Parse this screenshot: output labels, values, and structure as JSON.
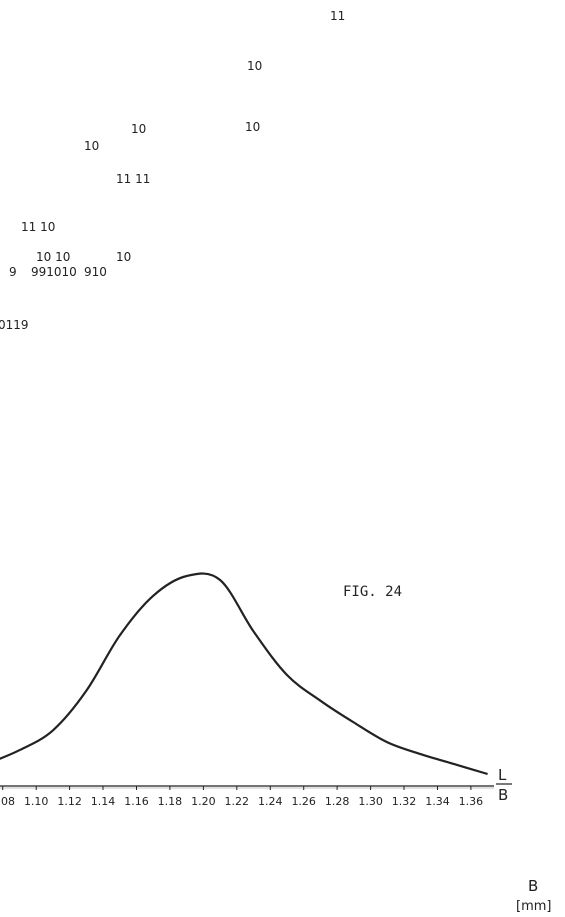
{
  "figure": {
    "title": "FIG. 24",
    "axis_ratio_label_top": "L",
    "axis_ratio_label_bottom": "B",
    "bottom_axis_name": "B",
    "bottom_axis_unit": "[mm]"
  },
  "chart_data": [
    {
      "type": "scatter",
      "description_free": true,
      "points": [
        {
          "label": "11",
          "x": 1.23,
          "y": 11
        },
        {
          "label": "10",
          "x": 1.2,
          "y": 10
        },
        {
          "label": "10",
          "x": 1.12,
          "y": 10
        },
        {
          "label": "10",
          "x": 1.2,
          "y": 10
        },
        {
          "label": "10",
          "x": 1.08,
          "y": 10
        },
        {
          "label": "11 11",
          "x": 1.1,
          "y": 11
        },
        {
          "label": "11 10",
          "x": 1.02,
          "y": 10
        },
        {
          "label": "10 10",
          "x": 1.04,
          "y": 10
        },
        {
          "label": "10",
          "x": 1.1,
          "y": 10
        },
        {
          "label": "9",
          "x": 1.0,
          "y": 9
        },
        {
          "label": "991010",
          "x": 1.04,
          "y": 10
        },
        {
          "label": "910",
          "x": 1.08,
          "y": 10
        },
        {
          "label": "0119",
          "x": 0.99,
          "y": 9
        }
      ]
    },
    {
      "type": "line",
      "title": "FIG. 24",
      "xlabel": "B",
      "xunit": "[mm]",
      "ylabel": "",
      "x": [
        1.07,
        1.09,
        1.11,
        1.13,
        1.15,
        1.17,
        1.19,
        1.21,
        1.23,
        1.25,
        1.27,
        1.29,
        1.31,
        1.33,
        1.35,
        1.37
      ],
      "y": [
        0.05,
        0.12,
        0.22,
        0.42,
        0.7,
        0.9,
        1.0,
        0.98,
        0.72,
        0.5,
        0.37,
        0.26,
        0.16,
        0.1,
        0.05,
        0.0
      ],
      "tick_labels": [
        "1.08",
        "1.10",
        "1.12",
        "1.14",
        "1.16",
        "1.18",
        "1.20",
        "1.22",
        "1.24",
        "1.26",
        "1.28",
        "1.30",
        "1.32",
        "1.34",
        "1.36"
      ],
      "tick_values": [
        1.08,
        1.1,
        1.12,
        1.14,
        1.16,
        1.18,
        1.2,
        1.22,
        1.24,
        1.26,
        1.28,
        1.3,
        1.32,
        1.34,
        1.36
      ],
      "xlim": [
        1.07,
        1.375
      ],
      "ylim": [
        0,
        1
      ]
    }
  ]
}
